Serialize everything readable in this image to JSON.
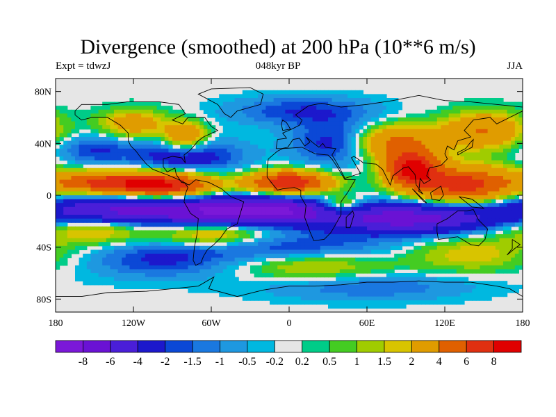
{
  "title": "Divergence (smoothed) at 200 hPa (10**6 m/s)",
  "left_label": "Expt = tdwzJ",
  "center_label": "048kyr BP",
  "right_label": "JJA",
  "map": {
    "lon_range": [
      -180,
      180
    ],
    "lat_range": [
      -90,
      90
    ],
    "lat_ticks": [
      {
        "value": 80,
        "label": "80N"
      },
      {
        "value": 40,
        "label": "40N"
      },
      {
        "value": 0,
        "label": "0"
      },
      {
        "value": -40,
        "label": "40S"
      },
      {
        "value": -80,
        "label": "80S"
      }
    ],
    "lon_ticks": [
      {
        "value": -180,
        "label": "180"
      },
      {
        "value": -120,
        "label": "120W"
      },
      {
        "value": -60,
        "label": "60W"
      },
      {
        "value": 0,
        "label": "0"
      },
      {
        "value": 60,
        "label": "60E"
      },
      {
        "value": 120,
        "label": "120E"
      },
      {
        "value": 180,
        "label": "180"
      }
    ]
  },
  "colorbar": {
    "colors": [
      "#7b18d8",
      "#6a12d4",
      "#4a1ed8",
      "#1c18cc",
      "#0b48d6",
      "#1a78e0",
      "#1e98e0",
      "#00b8e0",
      "#e6e6e6",
      "#00cc88",
      "#44cc22",
      "#a0cc00",
      "#d8c400",
      "#e09c00",
      "#e06000",
      "#e03010",
      "#e00000"
    ],
    "labels": [
      "-8",
      "-6",
      "-4",
      "-2",
      "-1.5",
      "-1",
      "-0.5",
      "-0.2",
      "0.2",
      "0.5",
      "1",
      "1.5",
      "2",
      "4",
      "6",
      "8"
    ]
  },
  "features": [
    {
      "lon": -100,
      "lat": 8,
      "v": 9,
      "sx": 28,
      "sy": 7
    },
    {
      "lon": -150,
      "lat": 10,
      "v": 5,
      "sx": 22,
      "sy": 6
    },
    {
      "lon": 0,
      "lat": 10,
      "v": 8,
      "sx": 22,
      "sy": 6
    },
    {
      "lon": 95,
      "lat": 20,
      "v": 8,
      "sx": 14,
      "sy": 9
    },
    {
      "lon": 135,
      "lat": 8,
      "v": 7,
      "sx": 28,
      "sy": 10
    },
    {
      "lon": 80,
      "lat": 40,
      "v": 5,
      "sx": 25,
      "sy": 10
    },
    {
      "lon": 150,
      "lat": 50,
      "v": 4,
      "sx": 22,
      "sy": 10
    },
    {
      "lon": -120,
      "lat": 55,
      "v": 3,
      "sx": 18,
      "sy": 8
    },
    {
      "lon": -80,
      "lat": 45,
      "v": 4,
      "sx": 12,
      "sy": 8
    },
    {
      "lon": 40,
      "lat": -8,
      "v": 4,
      "sx": 12,
      "sy": 5
    },
    {
      "lon": -150,
      "lat": -25,
      "v": 3,
      "sx": 30,
      "sy": 8
    },
    {
      "lon": -60,
      "lat": -30,
      "v": 3,
      "sx": 30,
      "sy": 7
    },
    {
      "lon": 140,
      "lat": -45,
      "v": 2,
      "sx": 35,
      "sy": 10
    },
    {
      "lon": 20,
      "lat": -55,
      "v": 2,
      "sx": 40,
      "sy": 8
    },
    {
      "lon": -20,
      "lat": -12,
      "v": -8,
      "sx": 40,
      "sy": 7
    },
    {
      "lon": -120,
      "lat": -12,
      "v": -7,
      "sx": 55,
      "sy": 8
    },
    {
      "lon": 90,
      "lat": -18,
      "v": -7,
      "sx": 45,
      "sy": 8
    },
    {
      "lon": -80,
      "lat": 30,
      "v": -3,
      "sx": 30,
      "sy": 10
    },
    {
      "lon": 40,
      "lat": 40,
      "v": -3,
      "sx": 25,
      "sy": 12
    },
    {
      "lon": 10,
      "lat": 65,
      "v": -2,
      "sx": 40,
      "sy": 8
    },
    {
      "lon": -150,
      "lat": 35,
      "v": -2,
      "sx": 20,
      "sy": 8
    },
    {
      "lon": 0,
      "lat": -40,
      "v": -2,
      "sx": 60,
      "sy": 8
    },
    {
      "lon": -100,
      "lat": -50,
      "v": -2,
      "sx": 40,
      "sy": 10
    },
    {
      "lon": 60,
      "lat": -70,
      "v": -1.5,
      "sx": 60,
      "sy": 8
    }
  ]
}
